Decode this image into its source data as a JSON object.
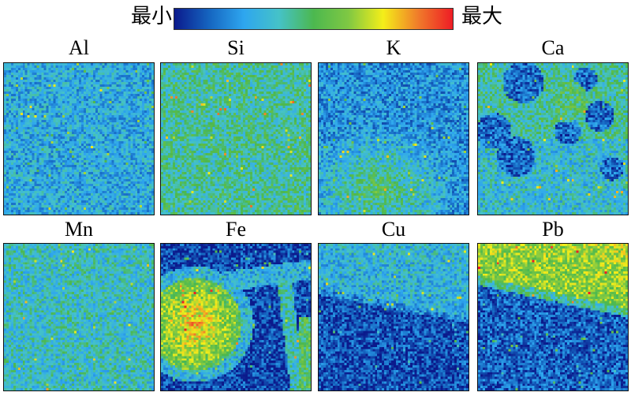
{
  "legend": {
    "min_label": "最小",
    "max_label": "最大",
    "colorscale": [
      "#0b1a8c",
      "#1565c0",
      "#2ea6ef",
      "#45c2c8",
      "#4cb84f",
      "#7fc843",
      "#f4ee19",
      "#f07c2a",
      "#ee1c25"
    ]
  },
  "panels": [
    {
      "label": "Al",
      "pattern": "uniform",
      "level": 0.28
    },
    {
      "label": "Si",
      "pattern": "uniform",
      "level": 0.42
    },
    {
      "label": "K",
      "pattern": "lower-blob",
      "level": 0.38
    },
    {
      "label": "Ca",
      "pattern": "holes",
      "level": 0.4
    },
    {
      "label": "Mn",
      "pattern": "uniform",
      "level": 0.36
    },
    {
      "label": "Fe",
      "pattern": "veins",
      "level": 0.55
    },
    {
      "label": "Cu",
      "pattern": "top-band",
      "level": 0.3
    },
    {
      "label": "Pb",
      "pattern": "top-hot",
      "level": 0.65
    }
  ]
}
